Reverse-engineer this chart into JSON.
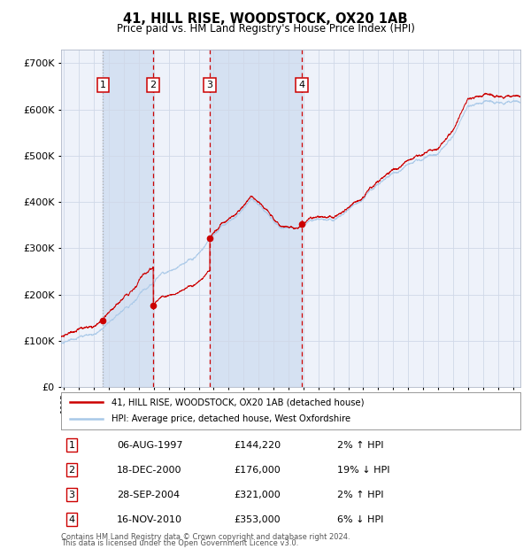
{
  "title": "41, HILL RISE, WOODSTOCK, OX20 1AB",
  "subtitle": "Price paid vs. HM Land Registry's House Price Index (HPI)",
  "legend_line1": "41, HILL RISE, WOODSTOCK, OX20 1AB (detached house)",
  "legend_line2": "HPI: Average price, detached house, West Oxfordshire",
  "footer1": "Contains HM Land Registry data © Crown copyright and database right 2024.",
  "footer2": "This data is licensed under the Open Government Licence v3.0.",
  "hpi_color": "#a8c8e8",
  "price_color": "#cc0000",
  "background_color": "#ffffff",
  "plot_bg_color": "#eef2fa",
  "grid_color": "#d0d8e8",
  "ylim": [
    0,
    730000
  ],
  "yticks": [
    0,
    100000,
    200000,
    300000,
    400000,
    500000,
    600000,
    700000
  ],
  "ytick_labels": [
    "£0",
    "£100K",
    "£200K",
    "£300K",
    "£400K",
    "£500K",
    "£600K",
    "£700K"
  ],
  "xlim_start": 1994.8,
  "xlim_end": 2025.5,
  "purchases": [
    {
      "num": 1,
      "date": 1997.59,
      "price": 144220,
      "label": "06-AUG-1997",
      "amount": "£144,220",
      "pct": "2%",
      "dir": "↑"
    },
    {
      "num": 2,
      "date": 2000.96,
      "price": 176000,
      "label": "18-DEC-2000",
      "amount": "£176,000",
      "pct": "19%",
      "dir": "↓"
    },
    {
      "num": 3,
      "date": 2004.74,
      "price": 321000,
      "label": "28-SEP-2004",
      "amount": "£321,000",
      "pct": "2%",
      "dir": "↑"
    },
    {
      "num": 4,
      "date": 2010.88,
      "price": 353000,
      "label": "16-NOV-2010",
      "amount": "£353,000",
      "pct": "6%",
      "dir": "↓"
    }
  ],
  "shaded_regions": [
    {
      "start": 1997.59,
      "end": 2000.96
    },
    {
      "start": 2004.74,
      "end": 2010.88
    }
  ],
  "hpi_key_points": [
    [
      1995.0,
      95000
    ],
    [
      1997.0,
      108000
    ],
    [
      1997.59,
      115000
    ],
    [
      2000.0,
      185000
    ],
    [
      2000.96,
      210000
    ],
    [
      2001.5,
      235000
    ],
    [
      2004.0,
      285000
    ],
    [
      2004.74,
      310000
    ],
    [
      2007.5,
      390000
    ],
    [
      2008.5,
      360000
    ],
    [
      2009.5,
      330000
    ],
    [
      2010.88,
      345000
    ],
    [
      2011.5,
      355000
    ],
    [
      2013.0,
      360000
    ],
    [
      2014.5,
      390000
    ],
    [
      2016.0,
      430000
    ],
    [
      2017.0,
      460000
    ],
    [
      2018.0,
      480000
    ],
    [
      2019.0,
      490000
    ],
    [
      2020.0,
      500000
    ],
    [
      2021.0,
      540000
    ],
    [
      2022.0,
      600000
    ],
    [
      2023.0,
      610000
    ],
    [
      2024.0,
      610000
    ],
    [
      2025.4,
      615000
    ]
  ]
}
